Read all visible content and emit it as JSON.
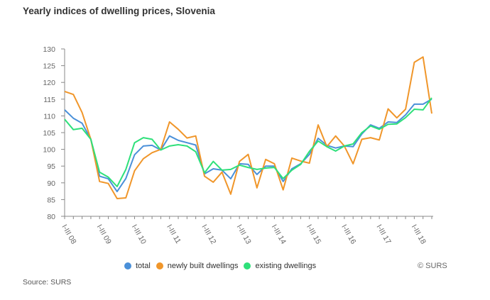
{
  "page": {
    "title": "Yearly indices of dwelling prices, Slovenia",
    "credit": "© SURS",
    "source": "Source: SURS"
  },
  "chart_data": {
    "type": "line",
    "title": "Yearly indices of dwelling prices, Slovenia",
    "xlabel": "",
    "ylabel": "",
    "ylim": [
      80,
      130
    ],
    "yticks": [
      80,
      85,
      90,
      95,
      100,
      105,
      110,
      115,
      120,
      125,
      130
    ],
    "grid": false,
    "legend_position": "bottom",
    "x": [
      "2008Q1",
      "2008Q2",
      "2008Q3",
      "2008Q4",
      "2009Q1",
      "2009Q2",
      "2009Q3",
      "2009Q4",
      "2010Q1",
      "2010Q2",
      "2010Q3",
      "2010Q4",
      "2011Q1",
      "2011Q2",
      "2011Q3",
      "2011Q4",
      "2012Q1",
      "2012Q2",
      "2012Q3",
      "2012Q4",
      "2013Q1",
      "2013Q2",
      "2013Q3",
      "2013Q4",
      "2014Q1",
      "2014Q2",
      "2014Q3",
      "2014Q4",
      "2015Q1",
      "2015Q2",
      "2015Q3",
      "2015Q4",
      "2016Q1",
      "2016Q2",
      "2016Q3",
      "2016Q4",
      "2017Q1",
      "2017Q2",
      "2017Q3",
      "2017Q4",
      "2018Q1",
      "2018Q2",
      "2018Q3"
    ],
    "xtick_labels": [
      {
        "index": 0,
        "label": "I-III 08"
      },
      {
        "index": 4,
        "label": "I-III 09"
      },
      {
        "index": 8,
        "label": "I-III 10"
      },
      {
        "index": 12,
        "label": "I-III 11"
      },
      {
        "index": 16,
        "label": "I-III 12"
      },
      {
        "index": 20,
        "label": "I-III 13"
      },
      {
        "index": 24,
        "label": "I-III 14"
      },
      {
        "index": 28,
        "label": "I-III 15"
      },
      {
        "index": 32,
        "label": "I-III 16"
      },
      {
        "index": 36,
        "label": "I-III 17"
      },
      {
        "index": 40,
        "label": "I-III 18"
      }
    ],
    "series": [
      {
        "name": "total",
        "color": "#4a90d9",
        "values": [
          111.8,
          109.3,
          107.8,
          103.0,
          92.0,
          91.2,
          87.4,
          91.3,
          98.4,
          101.0,
          101.2,
          99.8,
          104.0,
          102.7,
          102.0,
          101.3,
          92.7,
          94.2,
          93.8,
          91.2,
          95.7,
          95.5,
          92.5,
          95.0,
          95.0,
          90.4,
          94.2,
          95.7,
          98.5,
          103.3,
          101.2,
          100.4,
          101.0,
          100.8,
          104.6,
          107.3,
          106.3,
          108.2,
          108.0,
          110.3,
          113.5,
          113.5,
          115.0
        ]
      },
      {
        "name": "newly built dwellings",
        "color": "#f0962a",
        "values": [
          117.3,
          116.4,
          111.0,
          103.0,
          90.4,
          89.8,
          85.3,
          85.5,
          93.6,
          97.2,
          99.0,
          100.0,
          108.2,
          106.0,
          103.4,
          104.0,
          92.0,
          90.2,
          93.2,
          86.6,
          96.4,
          98.5,
          88.5,
          97.0,
          95.7,
          87.9,
          97.4,
          96.5,
          95.9,
          107.3,
          100.8,
          104.0,
          101.0,
          95.7,
          103.0,
          103.5,
          102.8,
          112.1,
          109.4,
          112.0,
          126.0,
          127.6,
          110.7
        ]
      },
      {
        "name": "existing dwellings",
        "color": "#2ee07a",
        "values": [
          109.0,
          105.9,
          106.3,
          103.0,
          93.2,
          91.7,
          88.9,
          94.0,
          102.0,
          103.5,
          103.0,
          99.8,
          101.0,
          101.4,
          101.0,
          99.3,
          93.0,
          96.4,
          93.8,
          94.0,
          95.3,
          94.6,
          94.0,
          94.4,
          94.6,
          91.3,
          93.8,
          95.5,
          99.4,
          102.5,
          100.8,
          99.5,
          101.0,
          101.6,
          105.0,
          107.0,
          106.0,
          107.5,
          107.6,
          109.5,
          112.0,
          111.8,
          115.4
        ]
      }
    ]
  }
}
